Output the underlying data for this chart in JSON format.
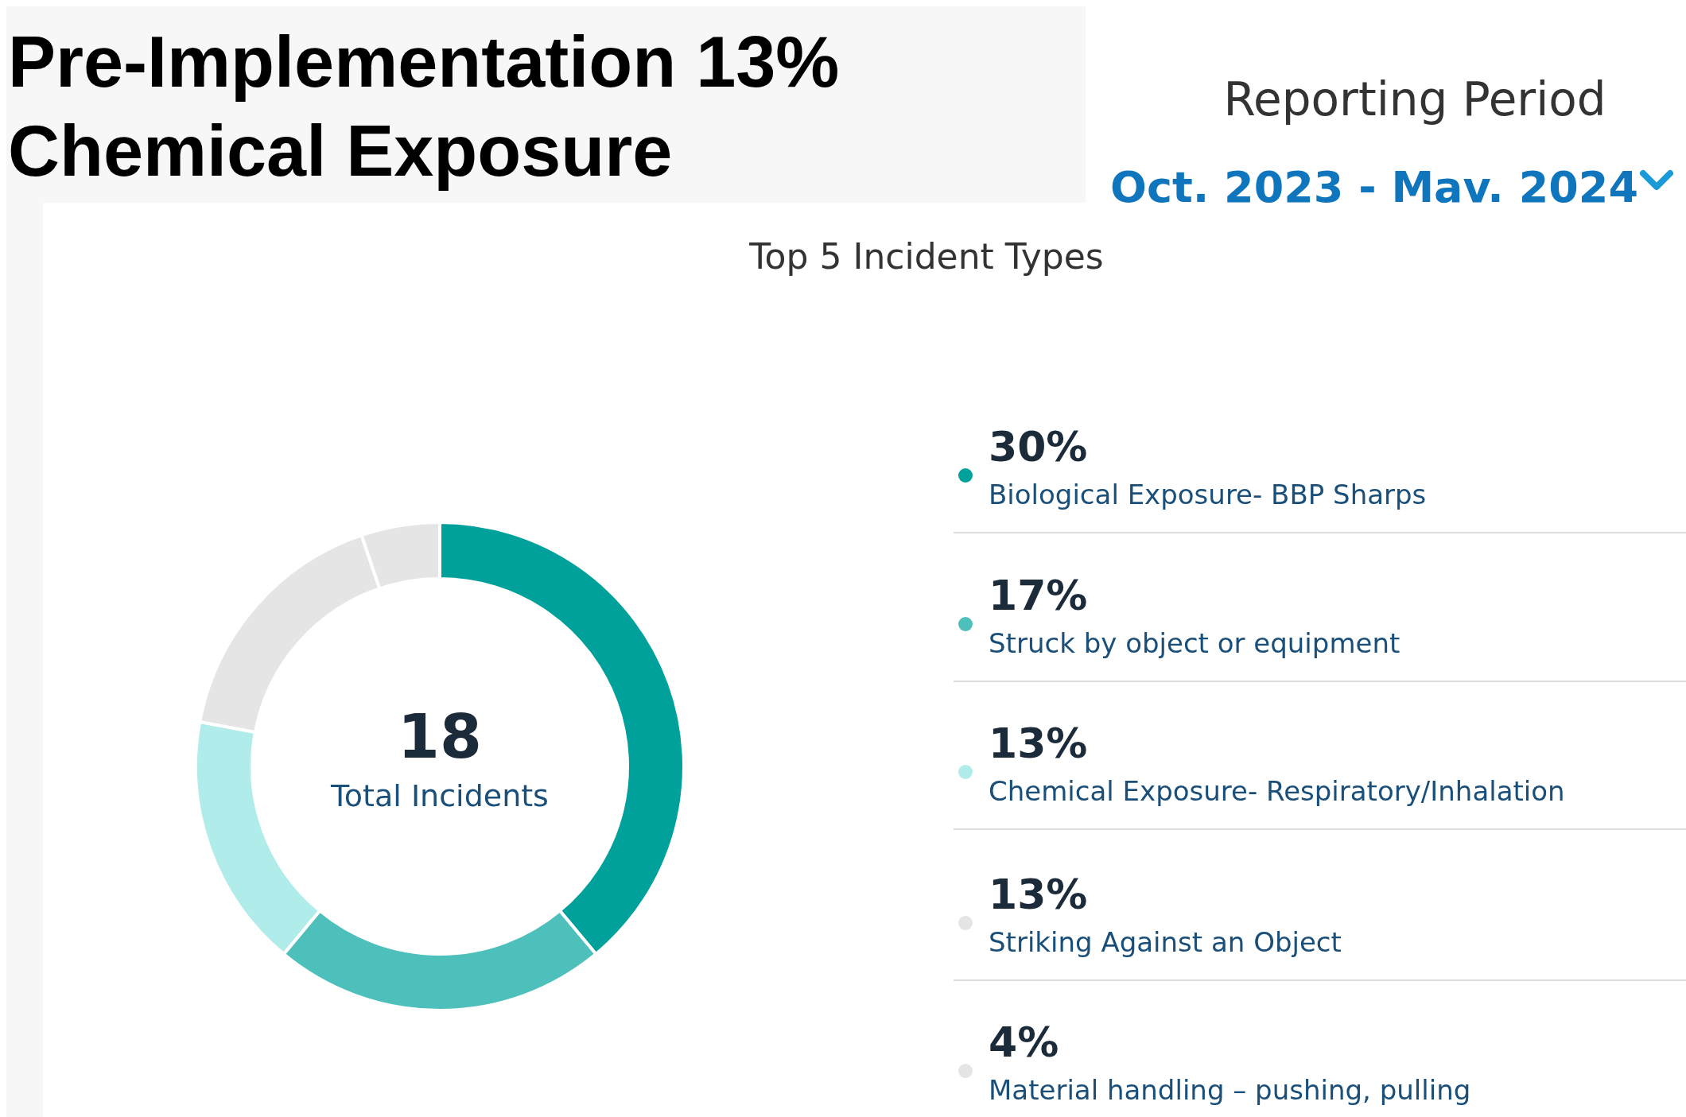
{
  "chart_data": {
    "type": "donut",
    "title": "Pre-Implementation 13% Chemical Exposure",
    "subtitle": "Top 5 Incident Types",
    "categories": [
      "Biological Exposure- BBP Sharps",
      "Struck by object or equipment",
      "Chemical Exposure- Respiratory/Inhalation",
      "Striking Against an Object",
      "Material handling – pushing, pulling"
    ],
    "values": [
      30,
      17,
      13,
      13,
      4
    ],
    "value_labels": [
      "30%",
      "17%",
      "13%",
      "13%",
      "4%"
    ],
    "colors": [
      "#00a19a",
      "#4dc0bb",
      "#b0ece9",
      "#e5e5e5",
      "#e5e5e5"
    ],
    "legend": "right",
    "annotations": [
      "18",
      "Total Incidents",
      "Reporting Period",
      "Oct. 2023 - Mav. 2024"
    ]
  }
}
